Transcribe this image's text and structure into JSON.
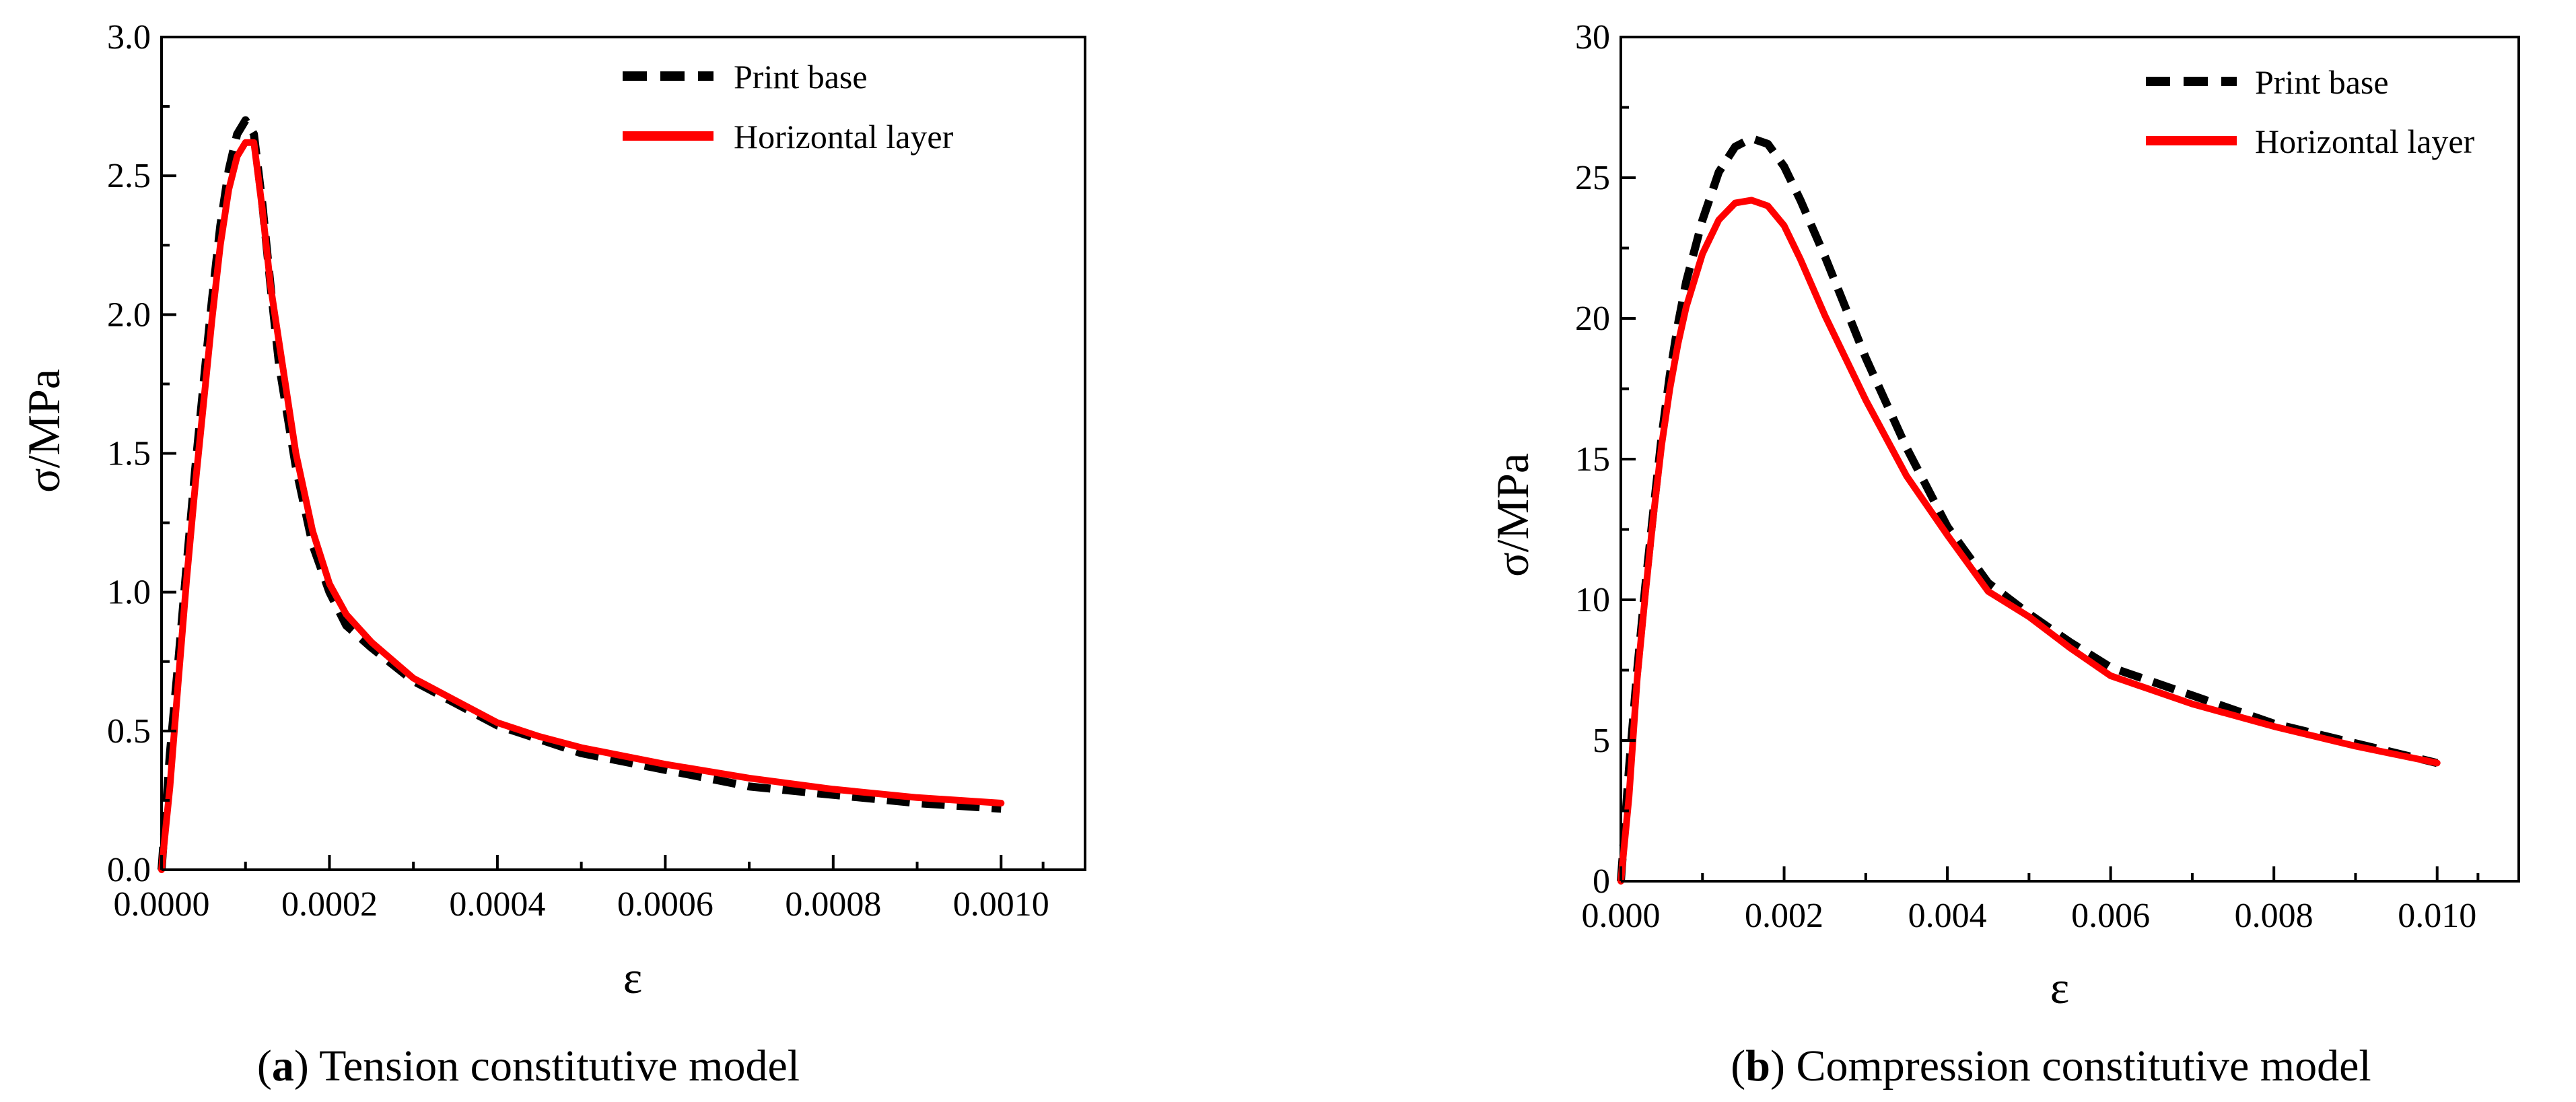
{
  "chart_data": [
    {
      "type": "line",
      "panel_label": "a",
      "caption": "Tension constitutive model",
      "xlabel": "ε",
      "ylabel": "σ/MPa",
      "xlim": [
        0,
        0.0011
      ],
      "ylim": [
        0,
        3.0
      ],
      "x_ticks": [
        0,
        0.0002,
        0.0004,
        0.0006,
        0.0008,
        0.001
      ],
      "x_tick_labels": [
        "0.0000",
        "0.0002",
        "0.0004",
        "0.0006",
        "0.0008",
        "0.0010"
      ],
      "y_ticks": [
        0,
        0.5,
        1.0,
        1.5,
        2.0,
        2.5,
        3.0
      ],
      "y_tick_labels": [
        "0.0",
        "0.5",
        "1.0",
        "1.5",
        "2.0",
        "2.5",
        "3.0"
      ],
      "grid": false,
      "legend_position": "top-right",
      "series": [
        {
          "name": "Print base",
          "style": "dashed",
          "color": "#000000",
          "points": [
            [
              0,
              0
            ],
            [
              1e-05,
              0.42
            ],
            [
              2e-05,
              0.75
            ],
            [
              3e-05,
              1.1
            ],
            [
              4e-05,
              1.44
            ],
            [
              5e-05,
              1.75
            ],
            [
              6e-05,
              2.05
            ],
            [
              7e-05,
              2.32
            ],
            [
              8e-05,
              2.52
            ],
            [
              9e-05,
              2.65
            ],
            [
              0.0001,
              2.7
            ],
            [
              0.00011,
              2.65
            ],
            [
              0.00012,
              2.4
            ],
            [
              0.00013,
              2.1
            ],
            [
              0.00014,
              1.82
            ],
            [
              0.00016,
              1.45
            ],
            [
              0.00018,
              1.17
            ],
            [
              0.0002,
              1.0
            ],
            [
              0.00022,
              0.88
            ],
            [
              0.00025,
              0.8
            ],
            [
              0.0003,
              0.68
            ],
            [
              0.00035,
              0.6
            ],
            [
              0.0004,
              0.52
            ],
            [
              0.00045,
              0.47
            ],
            [
              0.0005,
              0.42
            ],
            [
              0.0006,
              0.36
            ],
            [
              0.0007,
              0.3
            ],
            [
              0.0008,
              0.27
            ],
            [
              0.0009,
              0.24
            ],
            [
              0.001,
              0.22
            ]
          ]
        },
        {
          "name": "Horizontal layer",
          "style": "solid",
          "color": "#ff0000",
          "points": [
            [
              0,
              0
            ],
            [
              1e-05,
              0.3
            ],
            [
              2e-05,
              0.68
            ],
            [
              3e-05,
              1.05
            ],
            [
              4e-05,
              1.38
            ],
            [
              5e-05,
              1.68
            ],
            [
              6e-05,
              1.98
            ],
            [
              7e-05,
              2.25
            ],
            [
              8e-05,
              2.45
            ],
            [
              9e-05,
              2.57
            ],
            [
              0.0001,
              2.62
            ],
            [
              0.00011,
              2.62
            ],
            [
              0.00012,
              2.38
            ],
            [
              0.00013,
              2.1
            ],
            [
              0.00014,
              1.9
            ],
            [
              0.00016,
              1.5
            ],
            [
              0.00018,
              1.22
            ],
            [
              0.0002,
              1.03
            ],
            [
              0.00022,
              0.92
            ],
            [
              0.00025,
              0.82
            ],
            [
              0.0003,
              0.69
            ],
            [
              0.00035,
              0.61
            ],
            [
              0.0004,
              0.53
            ],
            [
              0.00045,
              0.48
            ],
            [
              0.0005,
              0.44
            ],
            [
              0.0006,
              0.38
            ],
            [
              0.0007,
              0.33
            ],
            [
              0.0008,
              0.29
            ],
            [
              0.0009,
              0.26
            ],
            [
              0.001,
              0.24
            ]
          ]
        }
      ]
    },
    {
      "type": "line",
      "panel_label": "b",
      "caption": "Compression constitutive model",
      "xlabel": "ε",
      "ylabel": "σ/MPa",
      "xlim": [
        0,
        0.011
      ],
      "ylim": [
        0,
        30
      ],
      "x_ticks": [
        0,
        0.002,
        0.004,
        0.006,
        0.008,
        0.01
      ],
      "x_tick_labels": [
        "0.000",
        "0.002",
        "0.004",
        "0.006",
        "0.008",
        "0.010"
      ],
      "y_ticks": [
        0,
        5,
        10,
        15,
        20,
        25,
        30
      ],
      "y_tick_labels": [
        "0",
        "5",
        "10",
        "15",
        "20",
        "25",
        "30"
      ],
      "grid": false,
      "legend_position": "top-right",
      "series": [
        {
          "name": "Print base",
          "style": "dashed",
          "color": "#000000",
          "points": [
            [
              0,
              0
            ],
            [
              0.0001,
              4
            ],
            [
              0.0002,
              7.5
            ],
            [
              0.0003,
              10.5
            ],
            [
              0.0004,
              13.2
            ],
            [
              0.0005,
              15.8
            ],
            [
              0.0006,
              18
            ],
            [
              0.0007,
              19.8
            ],
            [
              0.0008,
              21.3
            ],
            [
              0.001,
              23.5
            ],
            [
              0.0012,
              25.2
            ],
            [
              0.0014,
              26.1
            ],
            [
              0.0016,
              26.4
            ],
            [
              0.0018,
              26.2
            ],
            [
              0.002,
              25.4
            ],
            [
              0.0022,
              24.2
            ],
            [
              0.0025,
              22.2
            ],
            [
              0.003,
              18.6
            ],
            [
              0.0035,
              15.4
            ],
            [
              0.004,
              12.6
            ],
            [
              0.0045,
              10.6
            ],
            [
              0.005,
              9.5
            ],
            [
              0.0055,
              8.5
            ],
            [
              0.006,
              7.6
            ],
            [
              0.007,
              6.6
            ],
            [
              0.008,
              5.6
            ],
            [
              0.009,
              4.9
            ],
            [
              0.01,
              4.2
            ]
          ]
        },
        {
          "name": "Horizontal layer",
          "style": "solid",
          "color": "#ff0000",
          "points": [
            [
              0,
              0
            ],
            [
              0.0001,
              3
            ],
            [
              0.0002,
              7.2
            ],
            [
              0.0003,
              10.2
            ],
            [
              0.0004,
              13
            ],
            [
              0.0005,
              15.5
            ],
            [
              0.0006,
              17.5
            ],
            [
              0.0007,
              19.1
            ],
            [
              0.0008,
              20.4
            ],
            [
              0.001,
              22.3
            ],
            [
              0.0012,
              23.5
            ],
            [
              0.0014,
              24.1
            ],
            [
              0.0016,
              24.2
            ],
            [
              0.0018,
              24.0
            ],
            [
              0.002,
              23.3
            ],
            [
              0.0022,
              22.1
            ],
            [
              0.0025,
              20.1
            ],
            [
              0.003,
              17.1
            ],
            [
              0.0035,
              14.4
            ],
            [
              0.004,
              12.3
            ],
            [
              0.0045,
              10.3
            ],
            [
              0.005,
              9.4
            ],
            [
              0.0055,
              8.3
            ],
            [
              0.006,
              7.3
            ],
            [
              0.007,
              6.3
            ],
            [
              0.008,
              5.5
            ],
            [
              0.009,
              4.8
            ],
            [
              0.01,
              4.2
            ]
          ]
        }
      ]
    }
  ]
}
